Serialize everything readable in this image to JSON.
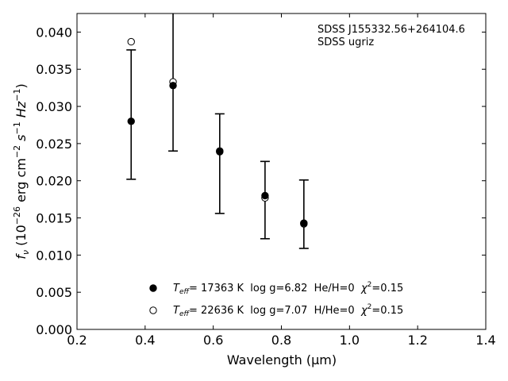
{
  "chart_data": {
    "type": "scatter",
    "annotation": [
      "SDSS J155332.56+264104.6",
      "SDSS ugriz"
    ],
    "xlabel": "Wavelength (μm)",
    "ylabel_parts": {
      "f": "f",
      "nu": "ν",
      "open": " (10",
      "exp26": "−26",
      "erg": " erg cm",
      "m2": "−2",
      "s": " s",
      "m1a": "−1",
      "hz": " Hz",
      "m1b": "−1",
      "close": ")"
    },
    "xlim": [
      0.2,
      1.4
    ],
    "ylim": [
      0.0,
      0.0425
    ],
    "x_ticks": [
      "0.2",
      "0.4",
      "0.6",
      "0.8",
      "1.0",
      "1.2",
      "1.4"
    ],
    "y_ticks": [
      "0.000",
      "0.005",
      "0.010",
      "0.015",
      "0.020",
      "0.025",
      "0.030",
      "0.035",
      "0.040"
    ],
    "observed": {
      "x": [
        0.359,
        0.482,
        0.619,
        0.752,
        0.866
      ],
      "y": [
        0.028,
        0.0328,
        0.024,
        0.018,
        0.0142
      ],
      "err_low": [
        0.0202,
        0.024,
        0.0156,
        0.0122,
        0.0109
      ],
      "err_high": [
        0.0376,
        0.043,
        0.029,
        0.0226,
        0.0201
      ]
    },
    "series": [
      {
        "marker": "filled",
        "x": [
          0.359,
          0.482,
          0.619,
          0.752,
          0.866
        ],
        "y": [
          0.028,
          0.0328,
          0.0239,
          0.018,
          0.0143
        ],
        "legend": {
          "teff_sym": "T",
          "teff_sub": "eff",
          "text": "= 17363 K  log g=6.82  He/H=0  ",
          "chi": "χ",
          "chi_sup": "2",
          "chi_val": "=0.15"
        }
      },
      {
        "marker": "open",
        "x": [
          0.359,
          0.482,
          0.619,
          0.752,
          0.866
        ],
        "y": [
          0.0387,
          0.0333,
          0.024,
          0.0177,
          0.0142
        ],
        "legend": {
          "teff_sym": "T",
          "teff_sub": "eff",
          "text": "= 22636 K  log g=7.07  H/He=0  ",
          "chi": "χ",
          "chi_sup": "2",
          "chi_val": "=0.15"
        }
      }
    ]
  }
}
